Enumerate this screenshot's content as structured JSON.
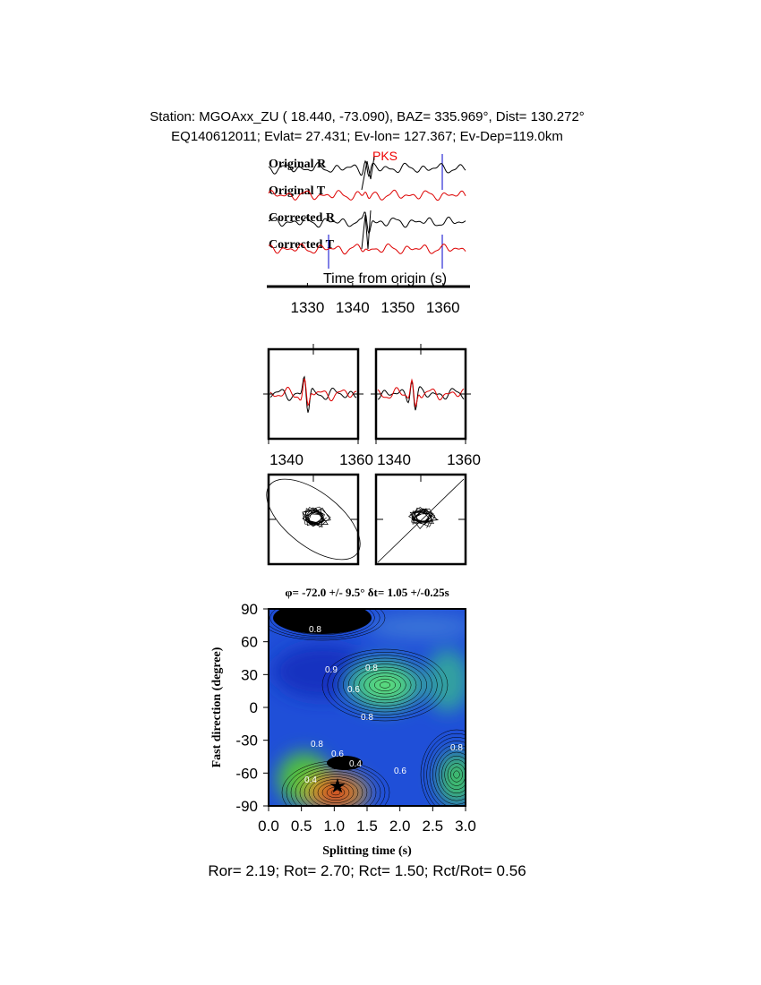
{
  "header": {
    "line1": "Station: MGOAxx_ZU (  18.440,  -73.090), BAZ=  335.969°, Dist=  130.272°",
    "line2": "EQ140612011; Evlat=  27.431; Ev-lon= 127.367; Ev-Dep=119.0km"
  },
  "chart_data": [
    {
      "type": "waveform",
      "phase_label": "PKS",
      "trace_labels": [
        "Original R",
        "Original T",
        "Corrected R",
        "Corrected T"
      ],
      "xlabel": "Time from origin (s)",
      "xlim": [
        1321,
        1366
      ],
      "xticks": [
        1330,
        1340,
        1350,
        1360
      ]
    },
    {
      "type": "waveform",
      "xlim": [
        1340,
        1360
      ],
      "xticks": [
        1340,
        1360
      ]
    },
    {
      "type": "waveform",
      "xlim": [
        1340,
        1360
      ],
      "xticks": [
        1340,
        1360
      ]
    },
    {
      "type": "contour",
      "title": "φ= -72.0 +/- 9.5° δt= 1.05 +/-0.25s",
      "xlabel": "Splitting time (s)",
      "ylabel": "Fast direction (degree)",
      "xlim": [
        0,
        3
      ],
      "ylim": [
        -90,
        90
      ],
      "xticks": [
        {
          "value": 0,
          "label": "0.0"
        },
        0.5,
        {
          "value": 1,
          "label": "1.0"
        },
        1.5,
        {
          "value": 2,
          "label": "2.0"
        },
        2.5,
        {
          "value": 3,
          "label": "3.0"
        }
      ],
      "yticks": [
        90,
        60,
        30,
        0,
        -30,
        -60,
        -90
      ],
      "contour_labels": [
        "0.8",
        "0.9",
        "0.8",
        "0.6",
        "0.8",
        "0.8",
        "0.6",
        "0.4",
        "0.8",
        "0.6",
        "0.4"
      ],
      "best": {
        "x": 1.05,
        "y": -72
      }
    }
  ],
  "footer": "Ror= 2.19; Rot= 2.70; Rct= 1.50; Rct/Rot= 0.56"
}
